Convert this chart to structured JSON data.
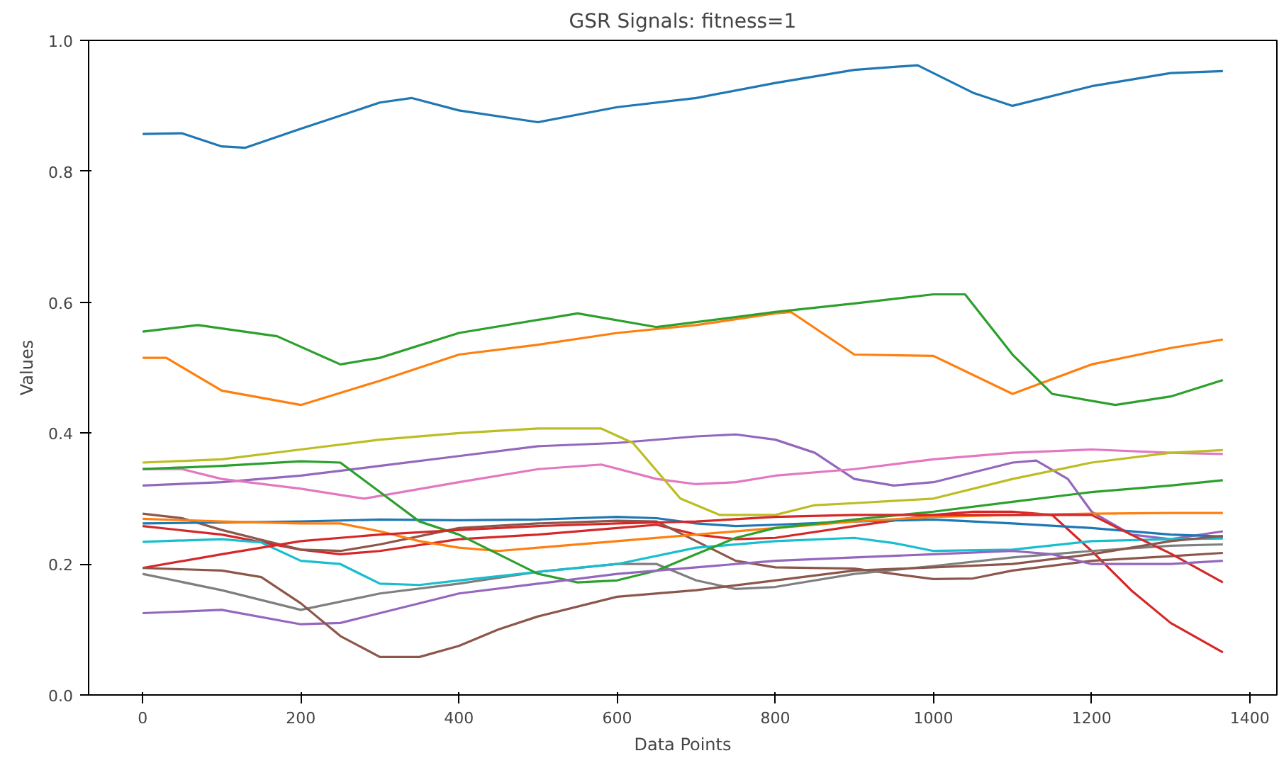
{
  "chart_data": {
    "type": "line",
    "title": "GSR Signals: fitness=1",
    "xlabel": "Data Points",
    "ylabel": "Values",
    "xlim": [
      -68.3,
      1434.3
    ],
    "ylim": [
      0,
      1.0
    ],
    "xticks": [
      0,
      200,
      400,
      600,
      800,
      1000,
      1200,
      1400
    ],
    "yticks": [
      {
        "value": 0,
        "label": "0.0"
      },
      {
        "value": 0.2,
        "label": "0.2"
      },
      {
        "value": 0.4,
        "label": "0.4"
      },
      {
        "value": 0.6,
        "label": "0.6"
      },
      {
        "value": 0.8,
        "label": "0.8"
      },
      {
        "value": 1.0,
        "label": "1.0"
      }
    ],
    "grid": false,
    "marker": "none",
    "line_style": "solid",
    "series": [
      {
        "color": "#1f77b4",
        "x": [
          0,
          50,
          100,
          130,
          200,
          300,
          340,
          400,
          500,
          600,
          700,
          800,
          900,
          980,
          1050,
          1100,
          1200,
          1300,
          1366
        ],
        "values": [
          0.857,
          0.858,
          0.838,
          0.836,
          0.865,
          0.905,
          0.912,
          0.893,
          0.875,
          0.898,
          0.912,
          0.935,
          0.955,
          0.962,
          0.92,
          0.9,
          0.93,
          0.95,
          0.953
        ]
      },
      {
        "color": "#ff7f0e",
        "x": [
          0,
          30,
          100,
          200,
          300,
          400,
          500,
          600,
          700,
          800,
          820,
          900,
          1000,
          1100,
          1200,
          1300,
          1366
        ],
        "values": [
          0.515,
          0.515,
          0.465,
          0.443,
          0.48,
          0.52,
          0.535,
          0.553,
          0.565,
          0.583,
          0.585,
          0.52,
          0.518,
          0.46,
          0.505,
          0.53,
          0.543
        ]
      },
      {
        "color": "#2ca02c",
        "x": [
          0,
          70,
          170,
          250,
          300,
          400,
          550,
          650,
          800,
          900,
          1000,
          1040,
          1100,
          1150,
          1230,
          1300,
          1366
        ],
        "values": [
          0.555,
          0.565,
          0.548,
          0.505,
          0.515,
          0.553,
          0.583,
          0.562,
          0.585,
          0.598,
          0.612,
          0.612,
          0.52,
          0.46,
          0.443,
          0.456,
          0.481
        ]
      },
      {
        "color": "#d62728",
        "x": [
          0,
          100,
          200,
          250,
          300,
          400,
          500,
          600,
          650,
          700,
          750,
          800,
          900,
          1000,
          1050,
          1100,
          1150,
          1200,
          1250,
          1300,
          1366
        ],
        "values": [
          0.258,
          0.245,
          0.222,
          0.215,
          0.22,
          0.238,
          0.245,
          0.255,
          0.26,
          0.245,
          0.238,
          0.24,
          0.258,
          0.275,
          0.28,
          0.28,
          0.275,
          0.22,
          0.16,
          0.11,
          0.065
        ]
      },
      {
        "color": "#9467bd",
        "x": [
          0,
          100,
          200,
          300,
          400,
          500,
          600,
          700,
          750,
          800,
          850,
          900,
          950,
          1000,
          1100,
          1130,
          1170,
          1200,
          1250,
          1300,
          1366
        ],
        "values": [
          0.32,
          0.325,
          0.335,
          0.35,
          0.365,
          0.38,
          0.385,
          0.395,
          0.398,
          0.39,
          0.37,
          0.33,
          0.32,
          0.325,
          0.355,
          0.358,
          0.33,
          0.28,
          0.245,
          0.238,
          0.25
        ]
      },
      {
        "color": "#8c564b",
        "x": [
          0,
          50,
          100,
          200,
          250,
          300,
          400,
          500,
          600,
          650,
          700,
          750,
          800,
          900,
          1000,
          1050,
          1100,
          1200,
          1300,
          1366
        ],
        "values": [
          0.277,
          0.27,
          0.252,
          0.222,
          0.22,
          0.23,
          0.255,
          0.262,
          0.266,
          0.265,
          0.235,
          0.205,
          0.195,
          0.193,
          0.177,
          0.178,
          0.19,
          0.205,
          0.212,
          0.217
        ]
      },
      {
        "color": "#e377c2",
        "x": [
          0,
          50,
          100,
          200,
          280,
          400,
          500,
          580,
          650,
          700,
          750,
          800,
          900,
          1000,
          1100,
          1200,
          1300,
          1366
        ],
        "values": [
          0.345,
          0.345,
          0.33,
          0.315,
          0.3,
          0.325,
          0.345,
          0.352,
          0.33,
          0.322,
          0.325,
          0.335,
          0.345,
          0.36,
          0.37,
          0.375,
          0.37,
          0.368
        ]
      },
      {
        "color": "#7f7f7f",
        "x": [
          0,
          100,
          200,
          300,
          400,
          500,
          600,
          650,
          700,
          750,
          800,
          900,
          1000,
          1100,
          1200,
          1300,
          1366
        ],
        "values": [
          0.185,
          0.16,
          0.13,
          0.155,
          0.17,
          0.188,
          0.2,
          0.2,
          0.175,
          0.162,
          0.165,
          0.185,
          0.197,
          0.21,
          0.22,
          0.228,
          0.23
        ]
      },
      {
        "color": "#bcbd22",
        "x": [
          0,
          100,
          200,
          300,
          400,
          500,
          580,
          620,
          680,
          730,
          800,
          850,
          900,
          1000,
          1100,
          1200,
          1300,
          1366
        ],
        "values": [
          0.355,
          0.36,
          0.375,
          0.39,
          0.4,
          0.407,
          0.407,
          0.385,
          0.3,
          0.275,
          0.275,
          0.29,
          0.293,
          0.3,
          0.33,
          0.355,
          0.37,
          0.374
        ]
      },
      {
        "color": "#17becf",
        "x": [
          0,
          100,
          150,
          200,
          250,
          300,
          350,
          400,
          500,
          600,
          700,
          800,
          900,
          950,
          1000,
          1100,
          1200,
          1300,
          1366
        ],
        "values": [
          0.234,
          0.238,
          0.233,
          0.205,
          0.2,
          0.17,
          0.168,
          0.175,
          0.188,
          0.2,
          0.225,
          0.235,
          0.24,
          0.232,
          0.22,
          0.222,
          0.235,
          0.238,
          0.239
        ]
      },
      {
        "color": "#1f77b4",
        "x": [
          0,
          200,
          300,
          400,
          500,
          600,
          650,
          700,
          750,
          800,
          900,
          1000,
          1100,
          1200,
          1300,
          1366
        ],
        "values": [
          0.262,
          0.265,
          0.268,
          0.267,
          0.268,
          0.272,
          0.27,
          0.262,
          0.258,
          0.26,
          0.265,
          0.268,
          0.262,
          0.255,
          0.245,
          0.242
        ]
      },
      {
        "color": "#ff7f0e",
        "x": [
          0,
          100,
          200,
          250,
          300,
          350,
          400,
          450,
          500,
          600,
          700,
          800,
          900,
          1000,
          1100,
          1200,
          1300,
          1366
        ],
        "values": [
          0.269,
          0.265,
          0.262,
          0.262,
          0.25,
          0.235,
          0.225,
          0.22,
          0.225,
          0.235,
          0.245,
          0.255,
          0.265,
          0.272,
          0.275,
          0.277,
          0.278,
          0.278
        ]
      },
      {
        "color": "#2ca02c",
        "x": [
          0,
          100,
          200,
          250,
          300,
          350,
          400,
          450,
          500,
          550,
          600,
          650,
          700,
          750,
          800,
          900,
          1000,
          1100,
          1200,
          1300,
          1366
        ],
        "values": [
          0.345,
          0.35,
          0.357,
          0.355,
          0.31,
          0.265,
          0.245,
          0.215,
          0.185,
          0.172,
          0.175,
          0.19,
          0.215,
          0.24,
          0.255,
          0.268,
          0.28,
          0.295,
          0.31,
          0.32,
          0.328
        ]
      },
      {
        "color": "#d62728",
        "x": [
          0,
          100,
          200,
          300,
          400,
          500,
          600,
          700,
          800,
          900,
          1000,
          1100,
          1200,
          1250,
          1300,
          1366
        ],
        "values": [
          0.194,
          0.215,
          0.235,
          0.245,
          0.252,
          0.258,
          0.262,
          0.265,
          0.272,
          0.275,
          0.275,
          0.275,
          0.275,
          0.245,
          0.216,
          0.172
        ]
      },
      {
        "color": "#9467bd",
        "x": [
          0,
          100,
          200,
          250,
          300,
          400,
          500,
          600,
          700,
          800,
          900,
          1000,
          1100,
          1150,
          1200,
          1300,
          1366
        ],
        "values": [
          0.125,
          0.13,
          0.108,
          0.11,
          0.125,
          0.155,
          0.17,
          0.185,
          0.195,
          0.205,
          0.21,
          0.215,
          0.22,
          0.215,
          0.2,
          0.2,
          0.205
        ]
      },
      {
        "color": "#8c564b",
        "x": [
          0,
          100,
          150,
          200,
          250,
          300,
          350,
          400,
          450,
          500,
          600,
          700,
          800,
          900,
          1000,
          1100,
          1200,
          1300,
          1366
        ],
        "values": [
          0.194,
          0.19,
          0.18,
          0.14,
          0.09,
          0.058,
          0.058,
          0.075,
          0.1,
          0.12,
          0.15,
          0.16,
          0.175,
          0.19,
          0.195,
          0.2,
          0.215,
          0.235,
          0.243
        ]
      }
    ]
  }
}
